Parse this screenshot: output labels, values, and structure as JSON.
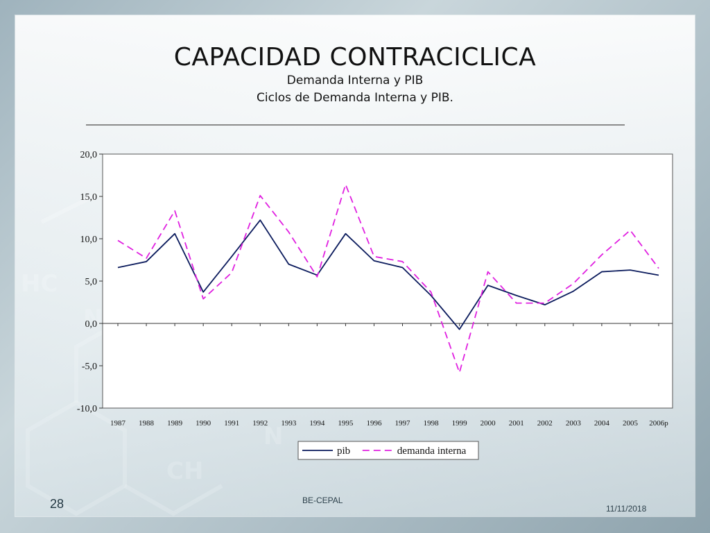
{
  "slide": {
    "title": "CAPACIDAD CONTRACICLICA",
    "subtitle_1": "Demanda Interna y PIB",
    "subtitle_2": "Ciclos de Demanda Interna y PIB.",
    "page_number": "28",
    "source": "BE-CEPAL",
    "date": "11/11/2018"
  },
  "chart_data": {
    "type": "line",
    "title": "",
    "xlabel": "",
    "ylabel": "",
    "categories": [
      "1987",
      "1988",
      "1989",
      "1990",
      "1991",
      "1992",
      "1993",
      "1994",
      "1995",
      "1996",
      "1997",
      "1998",
      "1999",
      "2000",
      "2001",
      "2002",
      "2003",
      "2004",
      "2005",
      "2006p"
    ],
    "ylim": [
      -10,
      20
    ],
    "yticks": [
      20,
      15,
      10,
      5,
      0,
      -5,
      -10
    ],
    "ytick_labels": [
      "20,0",
      "15,0",
      "10,0",
      "5,0",
      "0,0",
      "-5,0",
      "-10,0"
    ],
    "grid": false,
    "legend_position": "bottom",
    "series": [
      {
        "name": "pib",
        "color": "#0a1a5c",
        "style": "solid",
        "values": [
          6.6,
          7.3,
          10.6,
          3.7,
          7.9,
          12.2,
          7.0,
          5.7,
          10.6,
          7.4,
          6.6,
          3.3,
          -0.7,
          4.5,
          3.3,
          2.2,
          3.8,
          6.1,
          6.3,
          5.7
        ]
      },
      {
        "name": "demanda interna",
        "color": "#e020e0",
        "style": "dashed",
        "values": [
          9.8,
          7.7,
          13.3,
          2.9,
          6.0,
          15.1,
          10.8,
          5.5,
          16.4,
          7.9,
          7.3,
          3.7,
          -5.8,
          6.1,
          2.4,
          2.4,
          4.7,
          8.1,
          11.0,
          6.5
        ]
      }
    ]
  }
}
